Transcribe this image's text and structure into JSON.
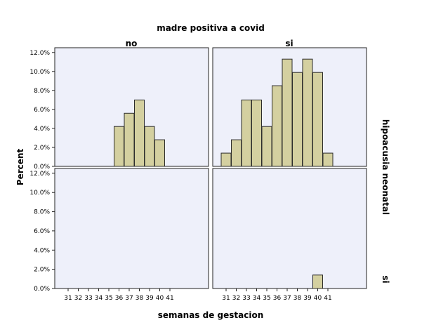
{
  "chart_data": {
    "type": "bar",
    "title": "madre positiva a covid",
    "xlabel": "semanas de gestacion",
    "ylabel": "Percent",
    "row_title": "hipoacusia neonatal",
    "column_facets": [
      "no",
      "si"
    ],
    "row_facets": [
      "",
      "si"
    ],
    "categories": [
      "31",
      "32",
      "33",
      "34",
      "35",
      "36",
      "37",
      "38",
      "39",
      "40",
      "41"
    ],
    "y_ticks": [
      "0.0%",
      "2.0%",
      "4.0%",
      "6.0%",
      "8.0%",
      "10.0%",
      "12.0%"
    ],
    "ylim": [
      0,
      12.5
    ],
    "grid": false,
    "colors": {
      "bar_fill": "#d4d0a0",
      "bar_stroke": "#2b2b2b",
      "panel_bg": "#eef0fa",
      "panel_border": "#222222"
    },
    "panels": [
      {
        "row": 0,
        "col": 0,
        "values": [
          0,
          0,
          0,
          0,
          0,
          4.2,
          5.6,
          7.0,
          4.2,
          2.8,
          0
        ]
      },
      {
        "row": 0,
        "col": 1,
        "values": [
          1.4,
          2.8,
          7.0,
          7.0,
          4.2,
          8.5,
          11.3,
          9.9,
          11.3,
          9.9,
          1.4
        ]
      },
      {
        "row": 1,
        "col": 0,
        "values": [
          0,
          0,
          0,
          0,
          0,
          0,
          0,
          0,
          0,
          0,
          0
        ]
      },
      {
        "row": 1,
        "col": 1,
        "values": [
          0,
          0,
          0,
          0,
          0,
          0,
          0,
          0,
          0,
          1.4,
          0
        ]
      }
    ]
  }
}
